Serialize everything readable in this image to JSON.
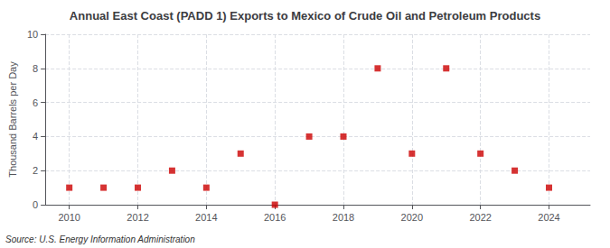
{
  "chart_data": {
    "type": "scatter",
    "title": "Annual East Coast (PADD 1) Exports to Mexico of Crude Oil and Petroleum Products",
    "ylabel": "Thousand Barrels per Day",
    "source": "Source: U.S. Energy Information Administration",
    "x": [
      2010,
      2011,
      2012,
      2013,
      2014,
      2015,
      2016,
      2017,
      2018,
      2019,
      2020,
      2021,
      2022,
      2023,
      2024
    ],
    "values": [
      1,
      1,
      1,
      2,
      1,
      3,
      0,
      4,
      4,
      8,
      3,
      8,
      3,
      2,
      1
    ],
    "color": "#cc0000",
    "marker": "square",
    "xlim": [
      2009.3,
      2025.2
    ],
    "xticks": [
      2010,
      2012,
      2014,
      2016,
      2018,
      2020,
      2022,
      2024
    ],
    "ylim": [
      0,
      10
    ],
    "yticks": [
      0,
      2,
      4,
      6,
      8,
      10
    ],
    "grid": true
  }
}
